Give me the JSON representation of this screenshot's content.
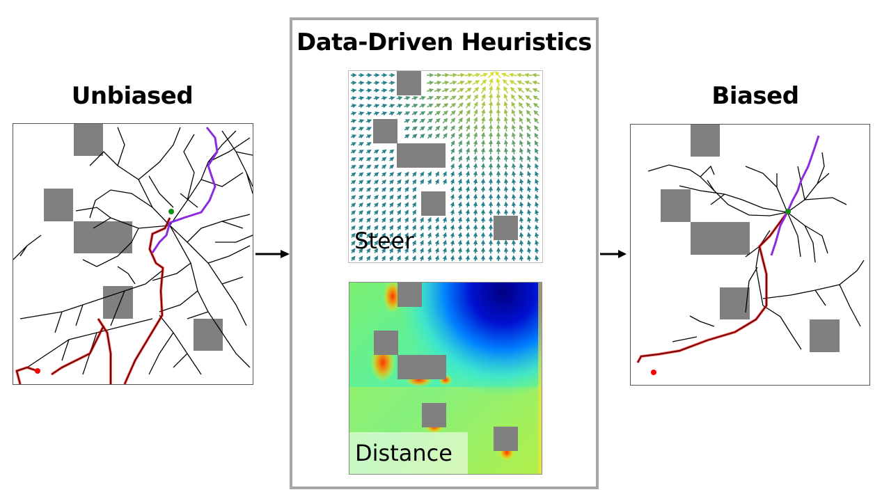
{
  "titles": {
    "left": "Unbiased",
    "center": "Data-Driven Heuristics",
    "right": "Biased"
  },
  "heuristics": {
    "steer_label": "Steer",
    "distance_label": "Distance"
  },
  "legend_colors": {
    "tree_edges": "#000000",
    "start_to_goal_path": "#8b0000",
    "path_highlight": "#ff0000",
    "goal_branch_path": "#8a2be2",
    "start_point": "#ff0000",
    "goal_point": "#138a13",
    "obstacle": "#808080",
    "center_box_border": "#a6a6a6"
  },
  "arrows": [
    "unbiased-to-heuristics",
    "heuristics-to-biased"
  ]
}
